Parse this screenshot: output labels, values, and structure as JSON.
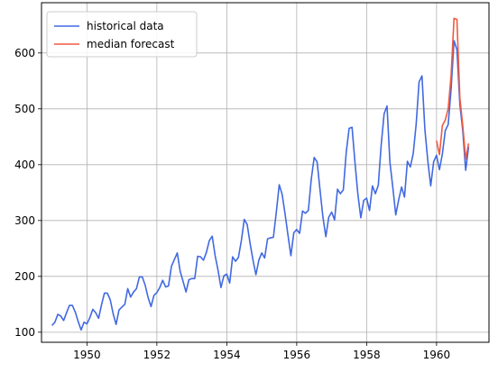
{
  "chart_data": {
    "type": "line",
    "title": "",
    "xlabel": "",
    "ylabel": "",
    "xlim": [
      1948.7,
      1961.5
    ],
    "ylim": [
      82,
      690
    ],
    "grid": true,
    "legend": {
      "placement": "top-left",
      "entries": [
        "historical data",
        "median forecast"
      ]
    },
    "x_ticks": [
      {
        "value": 1950,
        "label": "1950"
      },
      {
        "value": 1952,
        "label": "1952"
      },
      {
        "value": 1954,
        "label": "1954"
      },
      {
        "value": 1956,
        "label": "1956"
      },
      {
        "value": 1958,
        "label": "1958"
      },
      {
        "value": 1960,
        "label": "1960"
      }
    ],
    "y_ticks": [
      {
        "value": 100,
        "label": "100"
      },
      {
        "value": 200,
        "label": "200"
      },
      {
        "value": 300,
        "label": "300"
      },
      {
        "value": 400,
        "label": "400"
      },
      {
        "value": 500,
        "label": "500"
      },
      {
        "value": 600,
        "label": "600"
      }
    ],
    "series": [
      {
        "name": "historical data",
        "color": "#4169e1",
        "x_start": 1949.0,
        "x_step": 0.08333333333333333,
        "values": [
          112,
          118,
          132,
          129,
          121,
          135,
          148,
          148,
          136,
          119,
          104,
          118,
          115,
          126,
          141,
          135,
          125,
          149,
          170,
          170,
          158,
          133,
          114,
          140,
          145,
          150,
          178,
          163,
          172,
          178,
          199,
          199,
          184,
          162,
          146,
          166,
          171,
          180,
          193,
          181,
          183,
          218,
          230,
          242,
          209,
          191,
          172,
          194,
          196,
          196,
          236,
          235,
          229,
          243,
          264,
          272,
          237,
          211,
          180,
          201,
          204,
          188,
          235,
          227,
          234,
          264,
          302,
          293,
          259,
          229,
          203,
          229,
          242,
          233,
          267,
          269,
          270,
          315,
          364,
          347,
          312,
          274,
          237,
          278,
          284,
          277,
          317,
          313,
          318,
          374,
          413,
          405,
          355,
          306,
          271,
          306,
          315,
          301,
          356,
          348,
          355,
          422,
          465,
          467,
          404,
          347,
          305,
          336,
          340,
          318,
          362,
          348,
          363,
          435,
          491,
          505,
          404,
          359,
          310,
          337,
          360,
          342,
          406,
          396,
          420,
          472,
          548,
          559,
          463,
          407,
          362,
          405,
          417,
          391,
          419,
          461,
          472,
          535,
          622,
          606,
          508,
          461,
          390,
          432
        ]
      },
      {
        "name": "median forecast",
        "color": "#f05a40",
        "x_start": 1960.0,
        "x_step": 0.08333333333333333,
        "values": [
          443,
          418,
          470,
          480,
          500,
          560,
          662,
          660,
          520,
          470,
          410,
          438
        ]
      }
    ]
  }
}
